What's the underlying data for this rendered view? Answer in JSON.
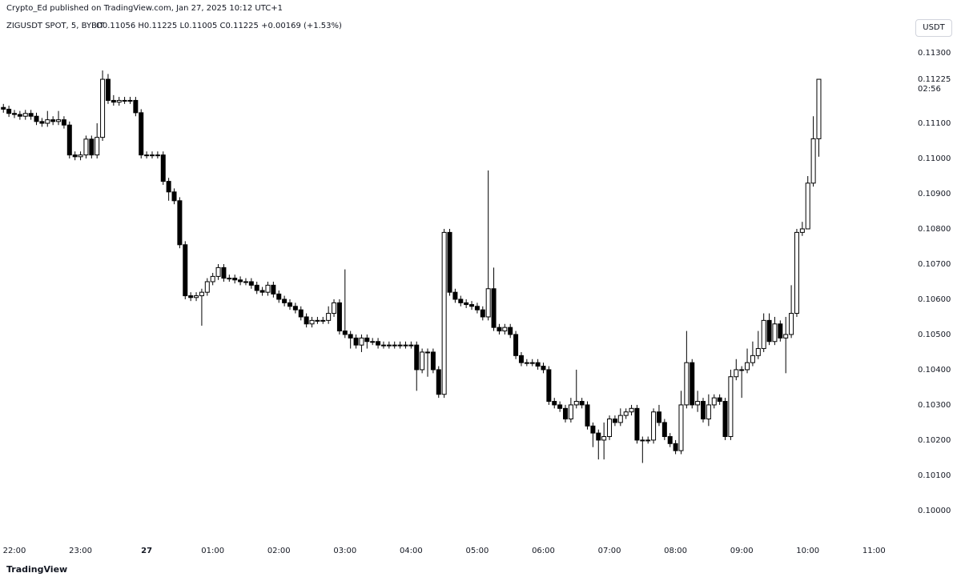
{
  "chart_data": {
    "type": "candlestick",
    "published": "Crypto_Ed published on TradingView.com, Jan 27, 2025 10:12 UTC+1",
    "title": "ZIGUSDT SPOT, 5, BYBIT",
    "legend": "O0.11056 H0.11225 L0.11005 C0.11225 +0.00169 (+1.53%)",
    "currency": "USDT",
    "logo": "TradingView",
    "up_color": "#ffffff",
    "down_color": "#000000",
    "edge_color": "#000000",
    "grid": false,
    "x": [
      "21:50",
      "21:55",
      "22:00",
      "22:05",
      "22:10",
      "22:15",
      "22:20",
      "22:25",
      "22:30",
      "22:35",
      "22:40",
      "22:45",
      "22:50",
      "22:55",
      "23:00",
      "23:05",
      "23:10",
      "23:15",
      "23:20",
      "23:25",
      "23:30",
      "23:35",
      "23:40",
      "23:45",
      "23:50",
      "23:55",
      "00:00",
      "00:05",
      "00:10",
      "00:15",
      "00:20",
      "00:25",
      "00:30",
      "00:35",
      "00:40",
      "00:45",
      "00:50",
      "00:55",
      "01:00",
      "01:05",
      "01:10",
      "01:15",
      "01:20",
      "01:25",
      "01:30",
      "01:35",
      "01:40",
      "01:45",
      "01:50",
      "01:55",
      "02:00",
      "02:05",
      "02:10",
      "02:15",
      "02:20",
      "02:25",
      "02:30",
      "02:35",
      "02:40",
      "02:45",
      "02:50",
      "02:55",
      "03:00",
      "03:05",
      "03:10",
      "03:15",
      "03:20",
      "03:25",
      "03:30",
      "03:35",
      "03:40",
      "03:45",
      "03:50",
      "03:55",
      "04:00",
      "04:05",
      "04:10",
      "04:15",
      "04:20",
      "04:25",
      "04:30",
      "04:35",
      "04:40",
      "04:45",
      "04:50",
      "04:55",
      "05:00",
      "05:05",
      "05:10",
      "05:15",
      "05:20",
      "05:25",
      "05:30",
      "05:35",
      "05:40",
      "05:45",
      "05:50",
      "05:55",
      "06:00",
      "06:05",
      "06:10",
      "06:15",
      "06:20",
      "06:25",
      "06:30",
      "06:35",
      "06:40",
      "06:45",
      "06:50",
      "06:55",
      "07:00",
      "07:05",
      "07:10",
      "07:15",
      "07:20",
      "07:25",
      "07:30",
      "07:35",
      "07:40",
      "07:45",
      "07:50",
      "07:55",
      "08:00",
      "08:05",
      "08:10",
      "08:15",
      "08:20",
      "08:25",
      "08:30",
      "08:35",
      "08:40",
      "08:45",
      "08:50",
      "08:55",
      "09:00",
      "09:05",
      "09:10",
      "09:15",
      "09:20",
      "09:25",
      "09:30",
      "09:35",
      "09:40",
      "09:45",
      "09:50",
      "09:55",
      "10:00",
      "10:05",
      "10:10"
    ],
    "open": [
      0.11145,
      0.1114,
      0.11128,
      0.11125,
      0.1112,
      0.11128,
      0.1112,
      0.11105,
      0.111,
      0.1111,
      0.11105,
      0.1111,
      0.11095,
      0.1101,
      0.11005,
      0.1101,
      0.11055,
      0.1101,
      0.1106,
      0.11225,
      0.11165,
      0.1116,
      0.11165,
      0.11165,
      0.11165,
      0.1113,
      0.1101,
      0.1101,
      0.1101,
      0.1101,
      0.10935,
      0.10905,
      0.1088,
      0.10755,
      0.1061,
      0.10605,
      0.1061,
      0.1062,
      0.1065,
      0.10665,
      0.1069,
      0.1066,
      0.1066,
      0.10655,
      0.1065,
      0.1065,
      0.1064,
      0.10625,
      0.1062,
      0.1064,
      0.10615,
      0.106,
      0.1059,
      0.1058,
      0.1057,
      0.1055,
      0.1053,
      0.1054,
      0.1054,
      0.1054,
      0.1056,
      0.1059,
      0.1051,
      0.105,
      0.1049,
      0.1047,
      0.1049,
      0.1048,
      0.1048,
      0.1047,
      0.1047,
      0.1047,
      0.1047,
      0.1047,
      0.1047,
      0.1047,
      0.104,
      0.1045,
      0.1045,
      0.104,
      0.1033,
      0.1079,
      0.1062,
      0.106,
      0.1059,
      0.10585,
      0.1058,
      0.1057,
      0.1055,
      0.1063,
      0.1052,
      0.1051,
      0.1052,
      0.105,
      0.1044,
      0.1042,
      0.1042,
      0.1042,
      0.1041,
      0.104,
      0.1031,
      0.103,
      0.1029,
      0.1026,
      0.103,
      0.1031,
      0.103,
      0.1024,
      0.1022,
      0.102,
      0.1021,
      0.1026,
      0.1025,
      0.1027,
      0.1028,
      0.1029,
      0.102,
      0.102,
      0.102,
      0.1028,
      0.1025,
      0.1021,
      0.1019,
      0.1017,
      0.103,
      0.1042,
      0.103,
      0.1031,
      0.1026,
      0.103,
      0.1032,
      0.1031,
      0.1021,
      0.1038,
      0.104,
      0.104,
      0.1042,
      0.1044,
      0.1046,
      0.1054,
      0.1048,
      0.1053,
      0.1049,
      0.105,
      0.1056,
      0.1079,
      0.108,
      0.1093,
      0.11056
    ],
    "high": [
      0.11155,
      0.1115,
      0.11138,
      0.11135,
      0.11138,
      0.11138,
      0.1113,
      0.11115,
      0.11135,
      0.1112,
      0.11135,
      0.1112,
      0.11105,
      0.1102,
      0.1102,
      0.11065,
      0.11065,
      0.111,
      0.1125,
      0.1124,
      0.1118,
      0.11175,
      0.11175,
      0.11175,
      0.11175,
      0.1114,
      0.1102,
      0.1102,
      0.1102,
      0.1102,
      0.10945,
      0.10915,
      0.1089,
      0.10765,
      0.1062,
      0.1062,
      0.1063,
      0.1066,
      0.10675,
      0.107,
      0.107,
      0.1067,
      0.1067,
      0.10665,
      0.1066,
      0.1066,
      0.1065,
      0.10635,
      0.1065,
      0.1065,
      0.10625,
      0.1061,
      0.106,
      0.1059,
      0.1058,
      0.1056,
      0.1055,
      0.1055,
      0.1055,
      0.1058,
      0.106,
      0.106,
      0.10685,
      0.1051,
      0.105,
      0.105,
      0.105,
      0.1049,
      0.1049,
      0.1048,
      0.1048,
      0.1048,
      0.1048,
      0.1048,
      0.1048,
      0.1048,
      0.1046,
      0.1046,
      0.1046,
      0.1041,
      0.108,
      0.108,
      0.1063,
      0.1061,
      0.106,
      0.10595,
      0.1059,
      0.1058,
      0.10966,
      0.1069,
      0.1053,
      0.1053,
      0.1053,
      0.1051,
      0.1045,
      0.1043,
      0.1043,
      0.1043,
      0.1042,
      0.1041,
      0.1032,
      0.1031,
      0.103,
      0.1032,
      0.104,
      0.1032,
      0.1031,
      0.1025,
      0.1023,
      0.1025,
      0.1027,
      0.1027,
      0.1029,
      0.1029,
      0.103,
      0.103,
      0.1021,
      0.1021,
      0.1029,
      0.103,
      0.1026,
      0.1022,
      0.102,
      0.1034,
      0.1051,
      0.1043,
      0.1034,
      0.1032,
      0.1033,
      0.1033,
      0.1033,
      0.1032,
      0.104,
      0.1043,
      0.1041,
      0.1046,
      0.1048,
      0.1051,
      0.1056,
      0.1056,
      0.1055,
      0.1054,
      0.1055,
      0.1064,
      0.108,
      0.1082,
      0.1095,
      0.1112,
      0.11225
    ],
    "low": [
      0.1113,
      0.11118,
      0.11115,
      0.1111,
      0.1111,
      0.1111,
      0.11095,
      0.1109,
      0.1109,
      0.11095,
      0.11095,
      0.11085,
      0.11,
      0.10995,
      0.10995,
      0.11,
      0.11,
      0.11,
      0.1105,
      0.11155,
      0.1115,
      0.1115,
      0.11155,
      0.11155,
      0.1112,
      0.11,
      0.11,
      0.11,
      0.11,
      0.10925,
      0.1088,
      0.1087,
      0.10745,
      0.106,
      0.10595,
      0.10595,
      0.10525,
      0.1061,
      0.1064,
      0.10655,
      0.1065,
      0.1065,
      0.10645,
      0.1064,
      0.1064,
      0.1063,
      0.10615,
      0.1061,
      0.1061,
      0.10605,
      0.1059,
      0.1058,
      0.1057,
      0.1056,
      0.1054,
      0.1052,
      0.1052,
      0.1053,
      0.1053,
      0.1053,
      0.1055,
      0.105,
      0.1049,
      0.1046,
      0.1046,
      0.1045,
      0.1046,
      0.1047,
      0.1046,
      0.1046,
      0.1046,
      0.1046,
      0.1046,
      0.1046,
      0.1046,
      0.1034,
      0.1039,
      0.1038,
      0.1039,
      0.1032,
      0.1032,
      0.1061,
      0.1059,
      0.1058,
      0.10575,
      0.1057,
      0.1056,
      0.1054,
      0.1054,
      0.1051,
      0.105,
      0.105,
      0.1049,
      0.1043,
      0.1041,
      0.1041,
      0.1041,
      0.104,
      0.1039,
      0.103,
      0.1029,
      0.1028,
      0.1025,
      0.1025,
      0.1029,
      0.1029,
      0.1023,
      0.1018,
      0.10145,
      0.10145,
      0.102,
      0.1024,
      0.1024,
      0.1026,
      0.1027,
      0.1019,
      0.10135,
      0.1019,
      0.1019,
      0.1024,
      0.102,
      0.1018,
      0.1016,
      0.1016,
      0.1029,
      0.1029,
      0.1028,
      0.1025,
      0.1024,
      0.1029,
      0.103,
      0.102,
      0.102,
      0.1037,
      0.1032,
      0.1039,
      0.1041,
      0.1043,
      0.1045,
      0.1047,
      0.1047,
      0.1048,
      0.1039,
      0.1049,
      0.1055,
      0.1078,
      0.1081,
      0.1092,
      0.11005
    ],
    "close": [
      0.1114,
      0.11128,
      0.11125,
      0.1112,
      0.11128,
      0.1112,
      0.11105,
      0.111,
      0.1111,
      0.11105,
      0.1111,
      0.11095,
      0.1101,
      0.11005,
      0.1101,
      0.11055,
      0.1101,
      0.1106,
      0.11225,
      0.11165,
      0.1116,
      0.11165,
      0.11165,
      0.11165,
      0.1113,
      0.1101,
      0.1101,
      0.1101,
      0.1101,
      0.10935,
      0.10905,
      0.1088,
      0.10755,
      0.1061,
      0.10605,
      0.1061,
      0.1062,
      0.1065,
      0.10665,
      0.1069,
      0.1066,
      0.1066,
      0.10655,
      0.1065,
      0.1065,
      0.1064,
      0.10625,
      0.1062,
      0.1064,
      0.10615,
      0.106,
      0.1059,
      0.1058,
      0.1057,
      0.1055,
      0.1053,
      0.1054,
      0.1054,
      0.1054,
      0.1056,
      0.1059,
      0.1051,
      0.105,
      0.1049,
      0.1047,
      0.1049,
      0.1048,
      0.1048,
      0.1047,
      0.1047,
      0.1047,
      0.1047,
      0.1047,
      0.1047,
      0.1047,
      0.104,
      0.1045,
      0.1045,
      0.104,
      0.1033,
      0.1079,
      0.1062,
      0.106,
      0.1059,
      0.10585,
      0.1058,
      0.1057,
      0.1055,
      0.1063,
      0.1052,
      0.1051,
      0.1052,
      0.105,
      0.1044,
      0.1042,
      0.1042,
      0.1042,
      0.1041,
      0.104,
      0.1031,
      0.103,
      0.1029,
      0.1026,
      0.103,
      0.1031,
      0.103,
      0.1024,
      0.1022,
      0.102,
      0.1021,
      0.1026,
      0.1025,
      0.1027,
      0.1028,
      0.1029,
      0.102,
      0.102,
      0.102,
      0.1028,
      0.1025,
      0.1021,
      0.1019,
      0.1017,
      0.103,
      0.1042,
      0.103,
      0.1031,
      0.1026,
      0.103,
      0.1032,
      0.1031,
      0.1021,
      0.1038,
      0.104,
      0.104,
      0.1042,
      0.1044,
      0.1046,
      0.1054,
      0.1048,
      0.1053,
      0.1049,
      0.105,
      0.1056,
      0.1079,
      0.108,
      0.1093,
      0.11056,
      0.11225
    ],
    "ylim": [
      0.09927,
      0.11382
    ],
    "yticks": [
      {
        "value": 0.1,
        "label": "0.10000"
      },
      {
        "value": 0.101,
        "label": "0.10100"
      },
      {
        "value": 0.102,
        "label": "0.10200"
      },
      {
        "value": 0.103,
        "label": "0.10300"
      },
      {
        "value": 0.104,
        "label": "0.10400"
      },
      {
        "value": 0.105,
        "label": "0.10500"
      },
      {
        "value": 0.106,
        "label": "0.10600"
      },
      {
        "value": 0.107,
        "label": "0.10700"
      },
      {
        "value": 0.108,
        "label": "0.10800"
      },
      {
        "value": 0.109,
        "label": "0.10900"
      },
      {
        "value": 0.11,
        "label": "0.11000"
      },
      {
        "value": 0.111,
        "label": "0.11100"
      },
      {
        "value": 0.113,
        "label": "0.11300"
      }
    ],
    "xticks": [
      "22:00",
      "23:00",
      {
        "value": "00:00",
        "label": "27"
      },
      "01:00",
      "02:00",
      "03:00",
      "04:00",
      "05:00",
      "06:00",
      "07:00",
      "08:00",
      "09:00",
      "10:00",
      "11:00"
    ],
    "last_price": {
      "value": 0.11225,
      "label": "0.11225"
    },
    "countdown": "02:56"
  }
}
